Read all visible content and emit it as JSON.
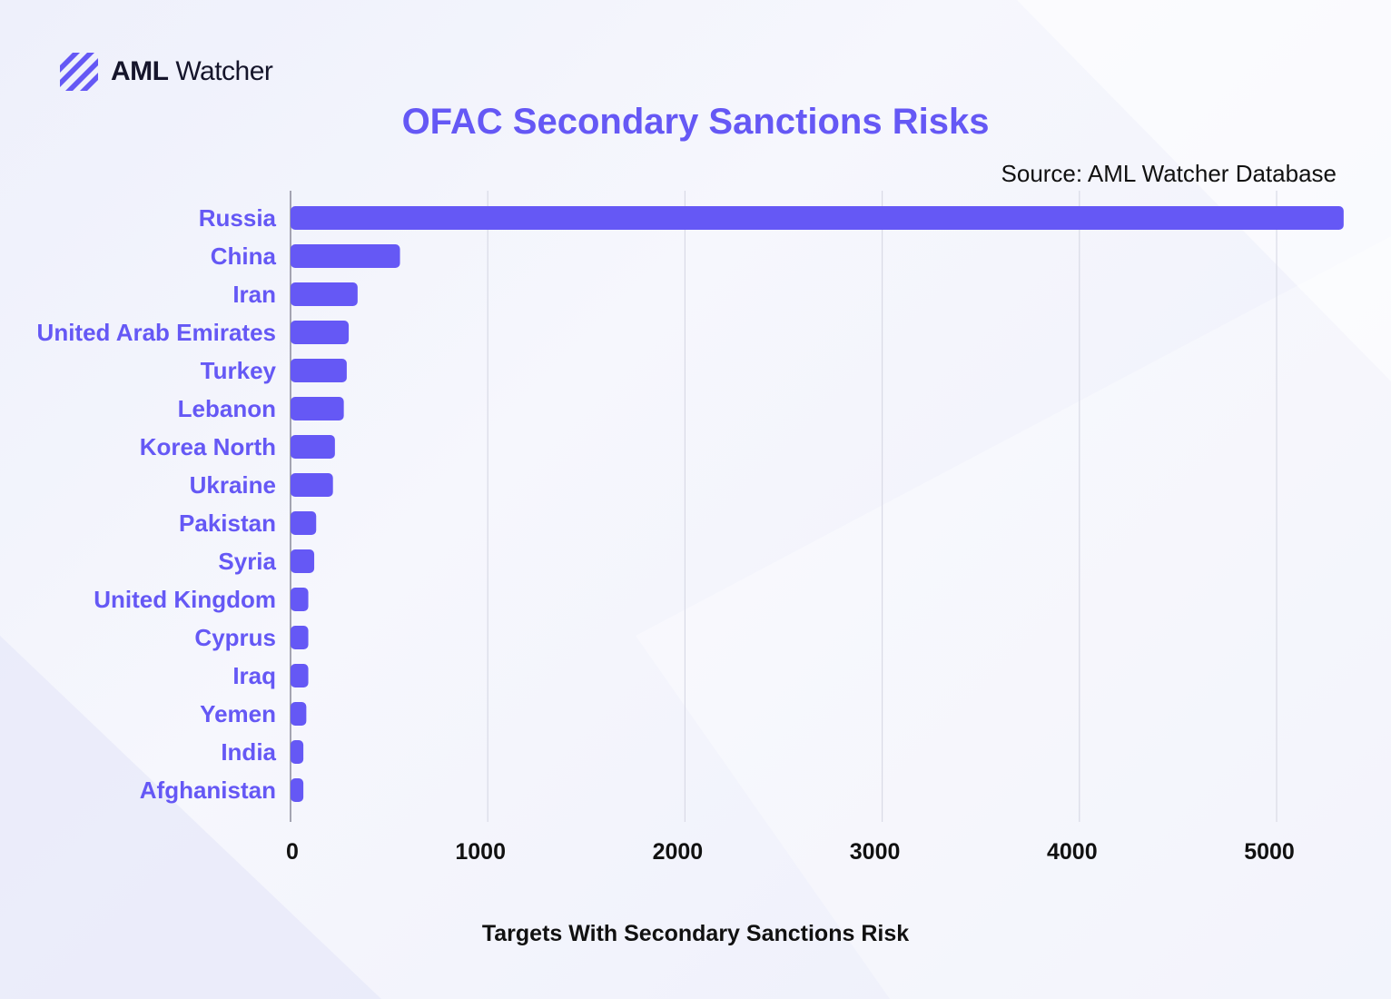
{
  "brand": {
    "logo_bold": "AML",
    "logo_light": "Watcher",
    "accent_color": "#6558f5",
    "text_color": "#15152b"
  },
  "chart_data": {
    "type": "bar",
    "orientation": "horizontal",
    "title": "OFAC Secondary Sanctions Risks",
    "source": "Source: AML Watcher Database",
    "xlabel": "Targets With Secondary Sanctions Risk",
    "ylabel": "",
    "categories": [
      "Russia",
      "China",
      "Iran",
      "United Arab Emirates",
      "Turkey",
      "Lebanon",
      "Korea North",
      "Ukraine",
      "Pakistan",
      "Syria",
      "United Kingdom",
      "Cyprus",
      "Iraq",
      "Yemen",
      "India",
      "Afghanistan"
    ],
    "values": [
      5340,
      555,
      340,
      295,
      285,
      270,
      225,
      215,
      130,
      120,
      90,
      90,
      90,
      80,
      65,
      65
    ],
    "xlim": [
      0,
      5350
    ],
    "xticks": [
      0,
      1000,
      2000,
      3000,
      4000,
      5000
    ],
    "grid": "vertical",
    "bar_color": "#6558f5",
    "label_color": "#6558f5"
  }
}
